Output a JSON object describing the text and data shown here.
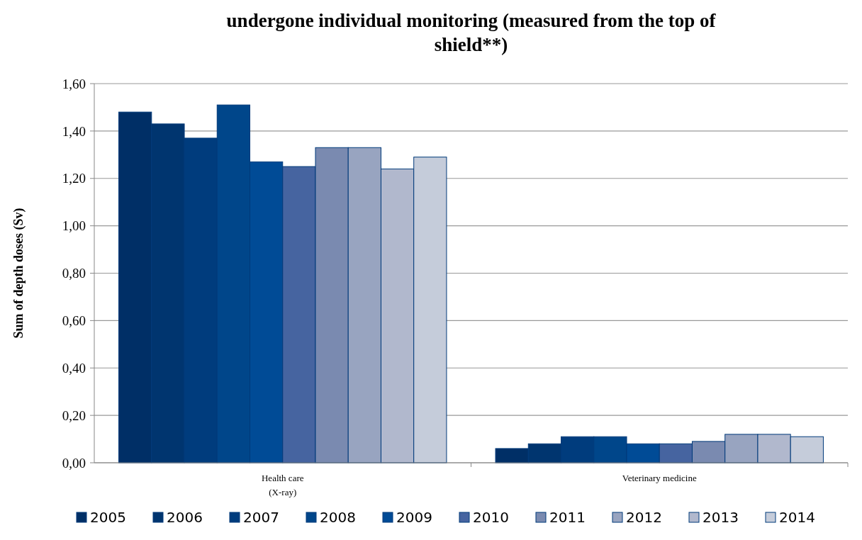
{
  "chart_data": {
    "type": "bar",
    "title": "undergone individual monitoring (measured from the top of shield**)",
    "ylabel": "Sum of depth doses (Sv)",
    "categories": [
      "Health care\n(X-ray)",
      "Veterinary medicine"
    ],
    "series": [
      {
        "name": "2005",
        "color": "#002f66",
        "values": [
          1.48,
          0.06
        ]
      },
      {
        "name": "2006",
        "color": "#00356f",
        "values": [
          1.43,
          0.08
        ]
      },
      {
        "name": "2007",
        "color": "#003c7d",
        "values": [
          1.37,
          0.11
        ]
      },
      {
        "name": "2008",
        "color": "#00468a",
        "values": [
          1.51,
          0.11
        ]
      },
      {
        "name": "2009",
        "color": "#004b96",
        "values": [
          1.27,
          0.08
        ]
      },
      {
        "name": "2010",
        "color": "#4664a0",
        "values": [
          1.25,
          0.08
        ]
      },
      {
        "name": "2011",
        "color": "#7a8ab0",
        "values": [
          1.33,
          0.09
        ]
      },
      {
        "name": "2012",
        "color": "#98a4c0",
        "values": [
          1.33,
          0.12
        ]
      },
      {
        "name": "2013",
        "color": "#b1b8cd",
        "values": [
          1.24,
          0.12
        ]
      },
      {
        "name": "2014",
        "color": "#c5ccda",
        "values": [
          1.29,
          0.11
        ]
      }
    ],
    "ylim": [
      0,
      1.6
    ],
    "yticks": [
      {
        "value": 0,
        "label": "0,00"
      },
      {
        "value": 0.2,
        "label": "0,20"
      },
      {
        "value": 0.4,
        "label": "0,40"
      },
      {
        "value": 0.6,
        "label": "0,60"
      },
      {
        "value": 0.8,
        "label": "0,80"
      },
      {
        "value": 1,
        "label": "1,00"
      },
      {
        "value": 1.2,
        "label": "1,20"
      },
      {
        "value": 1.4,
        "label": "1,40"
      },
      {
        "value": 1.6,
        "label": "1,60"
      }
    ],
    "grid": "y",
    "legend": "bottom"
  }
}
